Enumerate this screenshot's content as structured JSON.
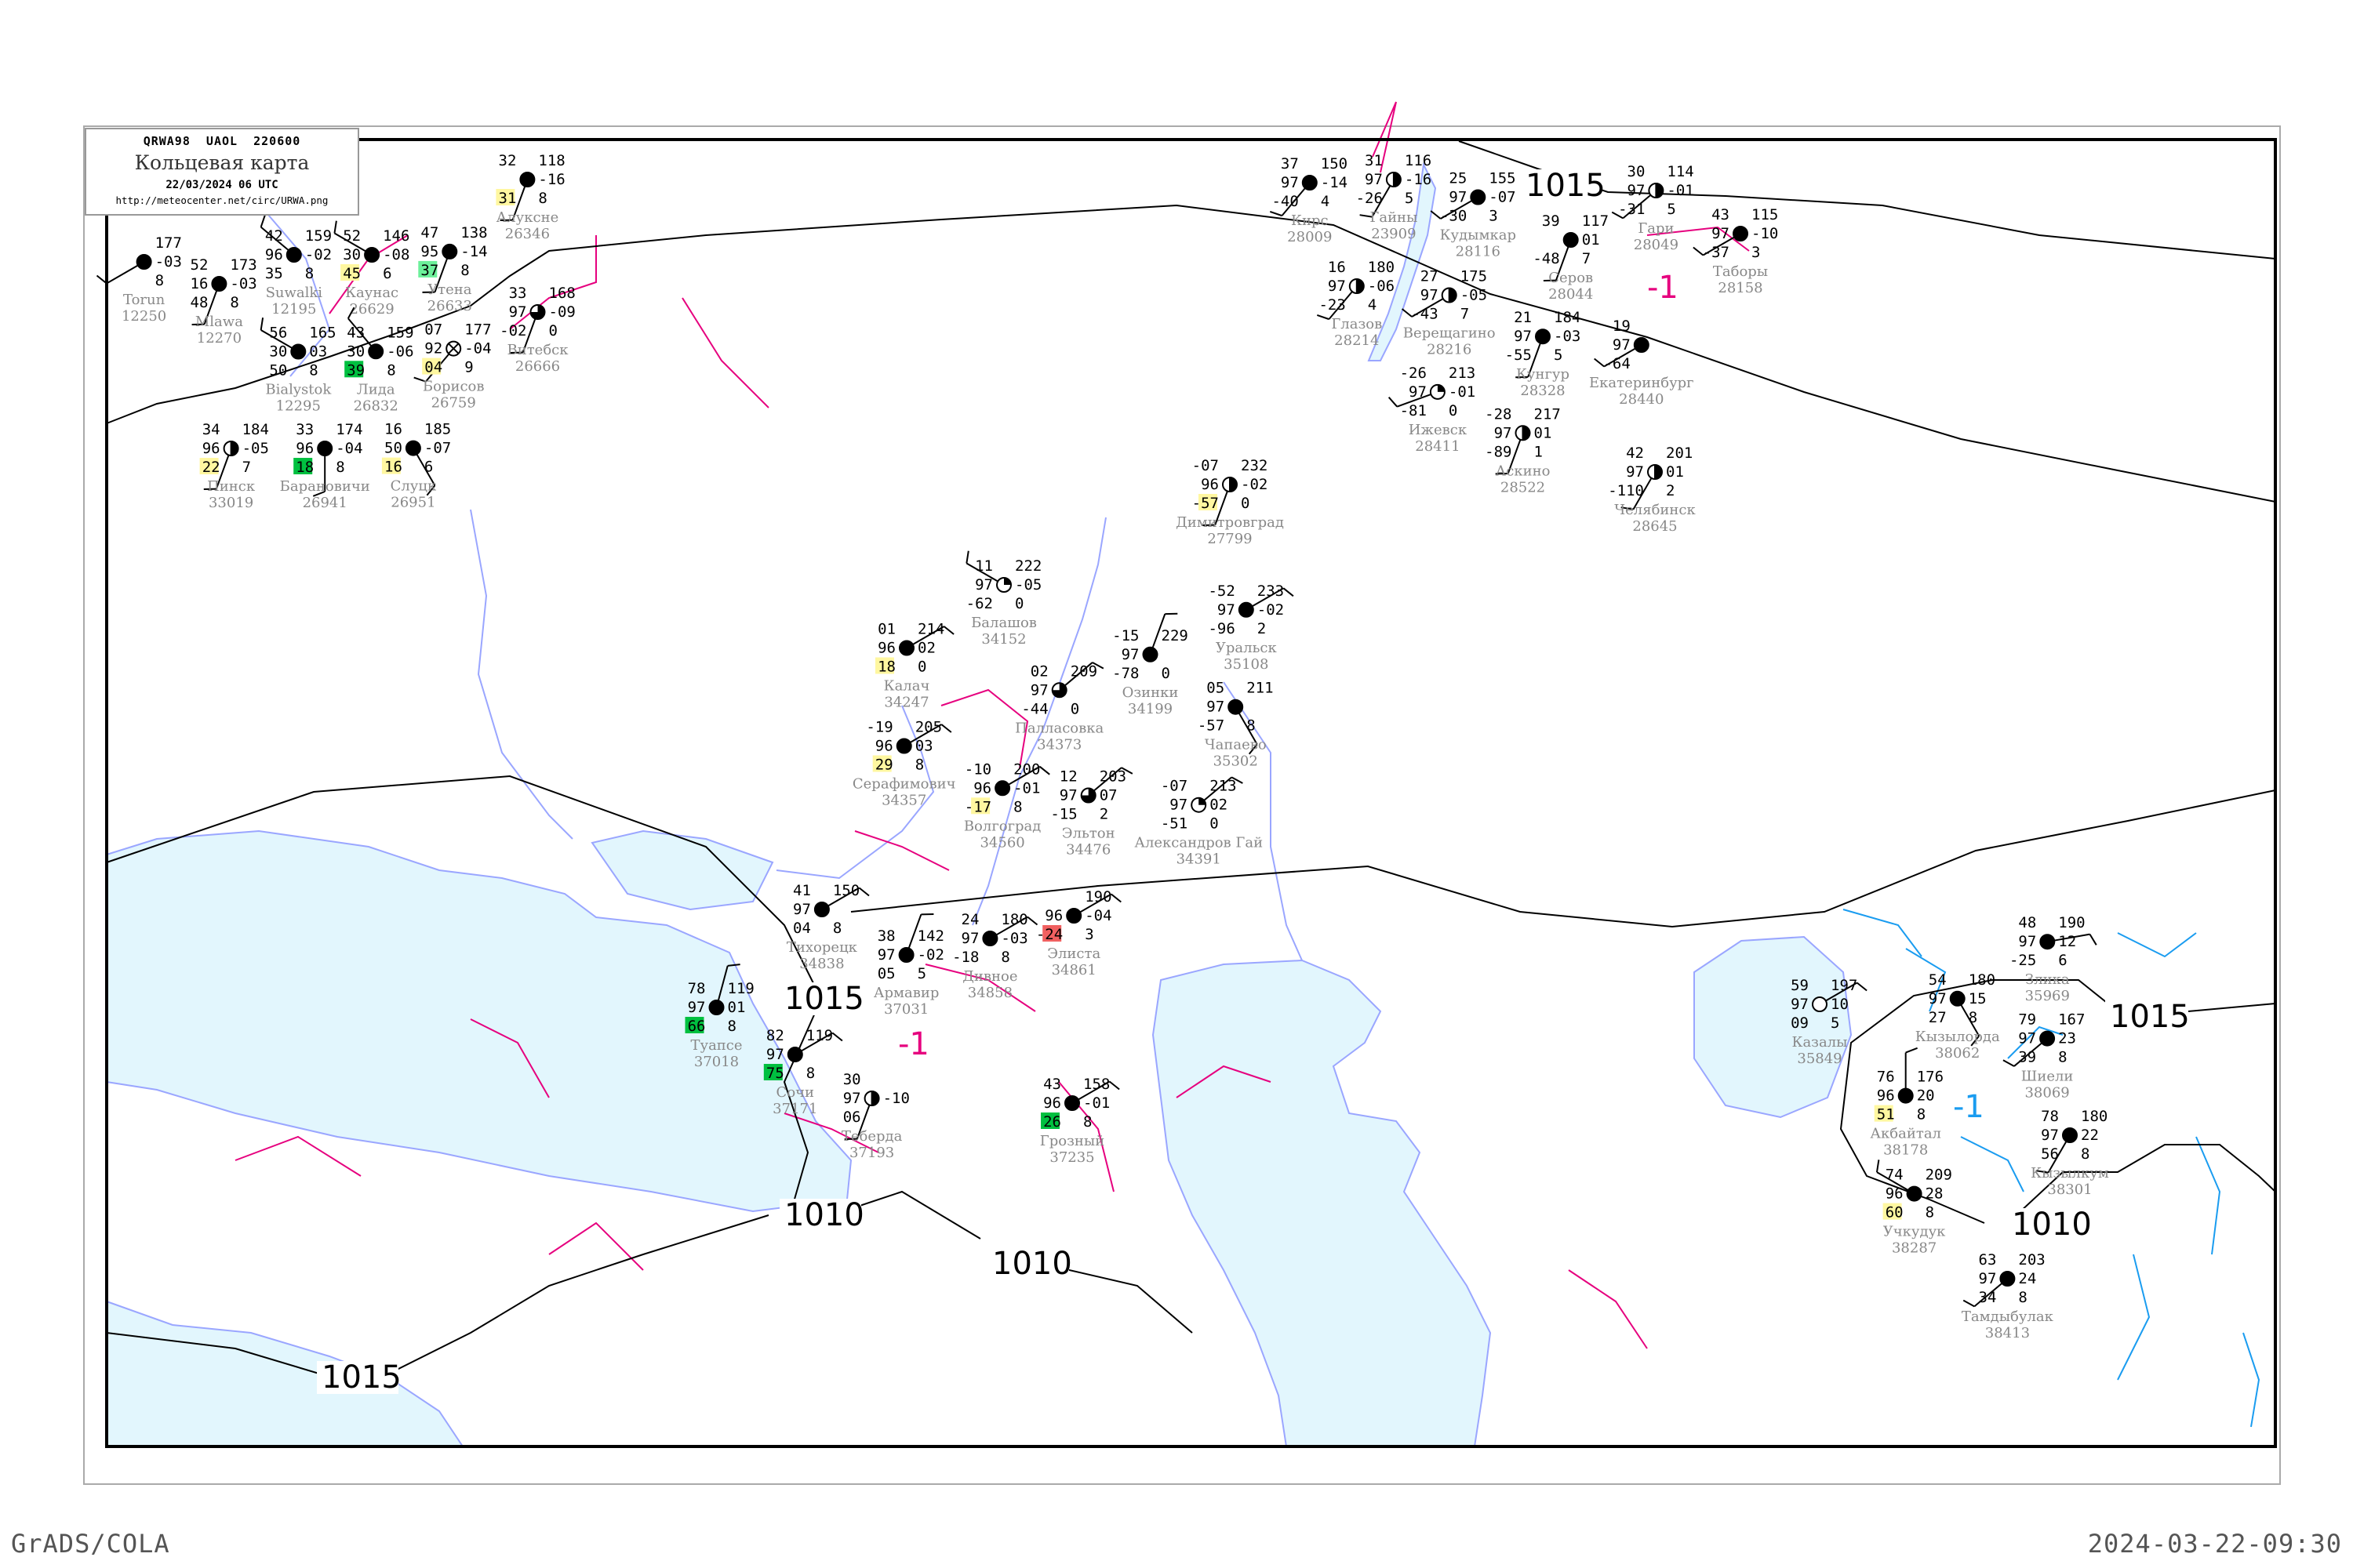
{
  "header": {
    "code_line": "QRWA98  UAOL  220600",
    "title": "Кольцевая карта",
    "datetime": "22/03/2024 06 UTC",
    "url": "http://meteocenter.net/circ/URWA.png"
  },
  "footer": {
    "left": "GrADS/COLA",
    "right": "2024-03-22-09:30"
  },
  "colors": {
    "sea": "#e2f6fd",
    "coast": "#9aa6ff",
    "isobar": "#000000",
    "isotherm_positive": "#e6007e",
    "isotherm_negative": "#1a9cf0",
    "station_name": "#888888",
    "flag_green": "#00c040",
    "flag_lightgreen": "#6cf09a",
    "flag_yellow": "#fff7a0",
    "flag_red": "#f06060",
    "flag_blue": "#2a8cf0"
  },
  "isobar_labels": [
    "1015",
    "1015",
    "1010",
    "1015",
    "1010",
    "1015",
    "1010"
  ],
  "isotherm_labels": [
    "-1",
    "-1",
    "-1"
  ],
  "stations": [
    {
      "name": "Каунас",
      "id": "26629",
      "tl": "52",
      "ml": "30",
      "bl": "45",
      "tr": "146",
      "mr": "-08",
      "br": "6",
      "cover": "full",
      "wind": 300,
      "flag": "flag_yellow"
    },
    {
      "name": "Лида",
      "id": "26832",
      "tl": "43",
      "ml": "30",
      "bl": "39",
      "tr": "159",
      "mr": "-06",
      "br": "8",
      "cover": "full",
      "wind": 320,
      "flag": "flag_green"
    },
    {
      "name": "Барановичи",
      "id": "26941",
      "tl": "33",
      "ml": "96",
      "bl": "18",
      "tr": "174",
      "mr": "-04",
      "br": "8",
      "cover": "full",
      "wind": 180,
      "flag": "flag_green"
    },
    {
      "name": "Bialystok",
      "id": "12295",
      "tl": "56",
      "ml": "30",
      "bl": "50",
      "tr": "165",
      "mr": "03",
      "br": "8",
      "cover": "full",
      "wind": 300,
      "flag": ""
    },
    {
      "name": "Torun",
      "id": "12250",
      "tl": "",
      "ml": "",
      "bl": "",
      "tr": "177",
      "mr": "-03",
      "br": "8",
      "cover": "full",
      "wind": 240,
      "flag": ""
    },
    {
      "name": "Mlawa",
      "id": "12270",
      "tl": "52",
      "ml": "16",
      "bl": "48",
      "tr": "173",
      "mr": "-03",
      "br": "8",
      "cover": "full",
      "wind": 200,
      "flag": ""
    },
    {
      "name": "Suwalki",
      "id": "12195",
      "tl": "42",
      "ml": "96",
      "bl": "35",
      "tr": "159",
      "mr": "-02",
      "br": "8",
      "cover": "full",
      "wind": 310,
      "flag": ""
    },
    {
      "name": "Утена",
      "id": "26633",
      "tl": "47",
      "ml": "95",
      "bl": "37",
      "tr": "138",
      "mr": "-14",
      "br": "8",
      "cover": "full",
      "wind": 200,
      "flag": "flag_lightgreen"
    },
    {
      "name": "Борисов",
      "id": "26759",
      "tl": "07",
      "ml": "92",
      "bl": "04",
      "tr": "177",
      "mr": "-04",
      "br": "9",
      "cover": "empty-x",
      "wind": 220,
      "flag": "flag_yellow"
    },
    {
      "name": "Витебск",
      "id": "26666",
      "tl": "33",
      "ml": "97",
      "bl": "-02",
      "tr": "168",
      "mr": "-09",
      "br": "0",
      "cover": "three-quarter",
      "wind": 200,
      "flag": ""
    },
    {
      "name": "Пинск",
      "id": "33019",
      "tl": "34",
      "ml": "96",
      "bl": "22",
      "tr": "184",
      "mr": "-05",
      "br": "7",
      "cover": "vertical",
      "wind": 200,
      "flag": "flag_yellow"
    },
    {
      "name": "Слуцк",
      "id": "26951",
      "tl": "16",
      "ml": "50",
      "bl": "16",
      "tr": "185",
      "mr": "-07",
      "br": "6",
      "cover": "full",
      "wind": 150,
      "flag": "flag_yellow"
    },
    {
      "name": "Алуксне",
      "id": "26346",
      "tl": "32",
      "ml": "",
      "bl": "31",
      "tr": "118",
      "mr": "-16",
      "br": "8",
      "cover": "full",
      "wind": 200,
      "flag": "flag_yellow"
    },
    {
      "name": "Кирс",
      "id": "28009",
      "tl": "37",
      "ml": "97",
      "bl": "-40",
      "tr": "150",
      "mr": "-14",
      "br": "4",
      "cover": "full",
      "wind": 220,
      "flag": ""
    },
    {
      "name": "Кудымкар",
      "id": "28116",
      "tl": "25",
      "ml": "97",
      "bl": "-30",
      "tr": "155",
      "mr": "-07",
      "br": "3",
      "cover": "full",
      "wind": 240,
      "flag": ""
    },
    {
      "name": "Глазов",
      "id": "28214",
      "tl": "16",
      "ml": "97",
      "bl": "-23",
      "tr": "180",
      "mr": "-06",
      "br": "4",
      "cover": "vertical",
      "wind": 220,
      "flag": ""
    },
    {
      "name": "Верещагино",
      "id": "28216",
      "tl": "27",
      "ml": "97",
      "bl": "-43",
      "tr": "175",
      "mr": "-05",
      "br": "7",
      "cover": "vertical",
      "wind": 240,
      "flag": ""
    },
    {
      "name": "Кунгур",
      "id": "28328",
      "tl": "21",
      "ml": "97",
      "bl": "-55",
      "tr": "184",
      "mr": "-03",
      "br": "5",
      "cover": "full",
      "wind": 200,
      "flag": ""
    },
    {
      "name": "Екатеринбург",
      "id": "28440",
      "tl": "19",
      "ml": "97",
      "bl": "-64",
      "tr": "",
      "mr": "",
      "br": "",
      "cover": "full",
      "wind": 240,
      "flag": ""
    },
    {
      "name": "Серов",
      "id": "28044",
      "tl": "39",
      "ml": "",
      "bl": "-48",
      "tr": "117",
      "mr": "01",
      "br": "7",
      "cover": "full",
      "wind": 200,
      "flag": ""
    },
    {
      "name": "Гари",
      "id": "28049",
      "tl": "30",
      "ml": "97",
      "bl": "-31",
      "tr": "114",
      "mr": "-01",
      "br": "5",
      "cover": "vertical",
      "wind": 230,
      "flag": ""
    },
    {
      "name": "Таборы",
      "id": "28158",
      "tl": "43",
      "ml": "97",
      "bl": "-37",
      "tr": "115",
      "mr": "-10",
      "br": "3",
      "cover": "full",
      "wind": 240,
      "flag": ""
    },
    {
      "name": "Ижевск",
      "id": "28411",
      "tl": "-26",
      "ml": "97",
      "bl": "-81",
      "tr": "213",
      "mr": "-01",
      "br": "0",
      "cover": "quarter",
      "wind": 250,
      "flag": ""
    },
    {
      "name": "Аскино",
      "id": "28522",
      "tl": "-28",
      "ml": "97",
      "bl": "-89",
      "tr": "217",
      "mr": "01",
      "br": "1",
      "cover": "vertical",
      "wind": 200,
      "flag": ""
    },
    {
      "name": "Челябинск",
      "id": "28645",
      "tl": "42",
      "ml": "97",
      "bl": "-110",
      "tr": "201",
      "mr": "01",
      "br": "2",
      "cover": "vertical",
      "wind": 210,
      "flag": ""
    },
    {
      "name": "Гайны",
      "id": "23909",
      "tl": "31",
      "ml": "97",
      "bl": "-26",
      "tr": "116",
      "mr": "-16",
      "br": "5",
      "cover": "vertical",
      "wind": 210,
      "flag": ""
    },
    {
      "name": "Балашов",
      "id": "34152",
      "tl": "11",
      "ml": "97",
      "bl": "-62",
      "tr": "222",
      "mr": "-05",
      "br": "0",
      "cover": "quarter",
      "wind": 300,
      "flag": ""
    },
    {
      "name": "Калач",
      "id": "34247",
      "tl": "01",
      "ml": "96",
      "bl": "18",
      "tr": "214",
      "mr": "02",
      "br": "0",
      "cover": "full",
      "wind": 60,
      "flag": "flag_yellow"
    },
    {
      "name": "Серафимович",
      "id": "34357",
      "tl": "-19",
      "ml": "96",
      "bl": "29",
      "tr": "205",
      "mr": "03",
      "br": "8",
      "cover": "full",
      "wind": 60,
      "flag": "flag_yellow"
    },
    {
      "name": "Волгоград",
      "id": "34560",
      "tl": "-10",
      "ml": "96",
      "bl": "-17",
      "tr": "200",
      "mr": "-01",
      "br": "8",
      "cover": "full",
      "wind": 60,
      "flag": "flag_yellow"
    },
    {
      "name": "Палласовка",
      "id": "34373",
      "tl": "02",
      "ml": "97",
      "bl": "-44",
      "tr": "209",
      "mr": "",
      "br": "0",
      "cover": "three-quarter",
      "wind": 50,
      "flag": ""
    },
    {
      "name": "Александров Гай",
      "id": "34391",
      "tl": "-07",
      "ml": "97",
      "bl": "-51",
      "tr": "213",
      "mr": "02",
      "br": "0",
      "cover": "quarter",
      "wind": 50,
      "flag": ""
    },
    {
      "name": "Уральск",
      "id": "35108",
      "tl": "-52",
      "ml": "97",
      "bl": "-96",
      "tr": "233",
      "mr": "-02",
      "br": "2",
      "cover": "full",
      "wind": 60,
      "flag": ""
    },
    {
      "name": "Озинки",
      "id": "34199",
      "tl": "-15",
      "ml": "97",
      "bl": "-78",
      "tr": "229",
      "mr": "",
      "br": "0",
      "cover": "full",
      "wind": 20,
      "flag": ""
    },
    {
      "name": "Эльтон",
      "id": "34476",
      "tl": "12",
      "ml": "97",
      "bl": "-15",
      "tr": "203",
      "mr": "07",
      "br": "2",
      "cover": "three-quarter",
      "wind": 50,
      "flag": ""
    },
    {
      "name": "Чапаево",
      "id": "35302",
      "tl": "05",
      "ml": "97",
      "bl": "-57",
      "tr": "211",
      "mr": "",
      "br": "8",
      "cover": "full",
      "wind": 150,
      "flag": ""
    },
    {
      "name": "Димитровград",
      "id": "27799",
      "tl": "-07",
      "ml": "96",
      "bl": "-57",
      "tr": "232",
      "mr": "-02",
      "br": "0",
      "cover": "vertical",
      "wind": 200,
      "flag": "flag_yellow"
    },
    {
      "name": "Кызылорда",
      "id": "38062",
      "tl": "54",
      "ml": "97",
      "bl": "27",
      "tr": "180",
      "mr": "15",
      "br": "8",
      "cover": "full",
      "wind": 150,
      "flag": ""
    },
    {
      "name": "Шиели",
      "id": "38069",
      "tl": "79",
      "ml": "97",
      "bl": "39",
      "tr": "167",
      "mr": "23",
      "br": "8",
      "cover": "full",
      "wind": 230,
      "flag": ""
    },
    {
      "name": "Акбайтал",
      "id": "38178",
      "tl": "76",
      "ml": "96",
      "bl": "51",
      "tr": "176",
      "mr": "20",
      "br": "8",
      "cover": "full",
      "wind": 0,
      "flag": "flag_yellow"
    },
    {
      "name": "Кызылкум",
      "id": "38301",
      "tl": "78",
      "ml": "97",
      "bl": "56",
      "tr": "180",
      "mr": "22",
      "br": "8",
      "cover": "full",
      "wind": 210,
      "flag": ""
    },
    {
      "name": "Злика",
      "id": "35969",
      "tl": "48",
      "ml": "97",
      "bl": "-25",
      "tr": "190",
      "mr": "12",
      "br": "6",
      "cover": "full",
      "wind": 80,
      "flag": ""
    },
    {
      "name": "Казалы",
      "id": "35849",
      "tl": "59",
      "ml": "97",
      "bl": "09",
      "tr": "197",
      "mr": "10",
      "br": "5",
      "cover": "empty",
      "wind": 60,
      "flag": ""
    },
    {
      "name": "Учкудук",
      "id": "38287",
      "tl": "74",
      "ml": "96",
      "bl": "60",
      "tr": "209",
      "mr": "28",
      "br": "8",
      "cover": "full",
      "wind": 300,
      "flag": "flag_yellow"
    },
    {
      "name": "Тамдыбулак",
      "id": "38413",
      "tl": "63",
      "ml": "97",
      "bl": "34",
      "tr": "203",
      "mr": "24",
      "br": "8",
      "cover": "full",
      "wind": 230,
      "flag": ""
    },
    {
      "name": "Туапсе",
      "id": "37018",
      "tl": "78",
      "ml": "97",
      "bl": "66",
      "tr": "119",
      "mr": "01",
      "br": "8",
      "cover": "full",
      "wind": 15,
      "flag": "flag_green"
    },
    {
      "name": "Сочи",
      "id": "37171",
      "tl": "82",
      "ml": "97",
      "bl": "75",
      "tr": "119",
      "mr": "",
      "br": "8",
      "cover": "full",
      "wind": 60,
      "flag": "flag_green"
    },
    {
      "name": "Армавир",
      "id": "37031",
      "tl": "38",
      "ml": "97",
      "bl": "05",
      "tr": "142",
      "mr": "-02",
      "br": "5",
      "cover": "full",
      "wind": 20,
      "flag": ""
    },
    {
      "name": "Тихорецк",
      "id": "34838",
      "tl": "41",
      "ml": "97",
      "bl": "04",
      "tr": "150",
      "mr": "",
      "br": "8",
      "cover": "full",
      "wind": 60,
      "flag": ""
    },
    {
      "name": "Элиста",
      "id": "34861",
      "tl": "",
      "ml": "96",
      "bl": "-24",
      "tr": "190",
      "mr": "-04",
      "br": "3",
      "cover": "full",
      "wind": 60,
      "flag": "flag_red"
    },
    {
      "name": "Дивное",
      "id": "34858",
      "tl": "24",
      "ml": "97",
      "bl": "-18",
      "tr": "180",
      "mr": "-03",
      "br": "8",
      "cover": "full",
      "wind": 60,
      "flag": ""
    },
    {
      "name": "Грозный",
      "id": "37235",
      "tl": "43",
      "ml": "96",
      "bl": "26",
      "tr": "158",
      "mr": "-01",
      "br": "8",
      "cover": "full",
      "wind": 60,
      "flag": "flag_green"
    },
    {
      "name": "Теберда",
      "id": "37193",
      "tl": "30",
      "ml": "97",
      "bl": "06",
      "tr": "",
      "mr": "-10",
      "br": "",
      "cover": "vertical",
      "wind": 200,
      "flag": ""
    }
  ]
}
